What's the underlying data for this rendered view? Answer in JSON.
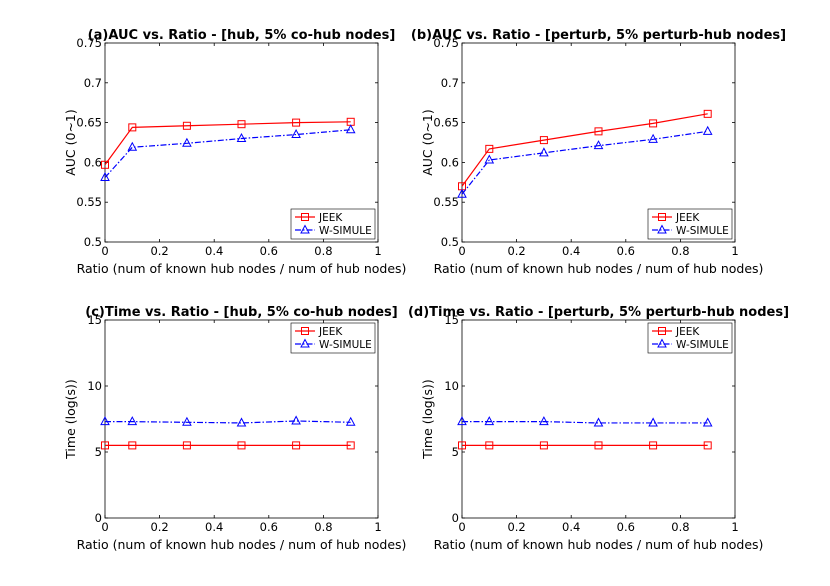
{
  "chart_data": [
    {
      "type": "line",
      "title": "(a)AUC vs. Ratio - [hub, 5% co-hub nodes]",
      "xlabel": "Ratio (num of known hub nodes / num of hub nodes)",
      "ylabel": "AUC (0~1)",
      "xlim": [
        0,
        1
      ],
      "ylim": [
        0.5,
        0.75
      ],
      "xticks": [
        "0",
        "0.2",
        "0.4",
        "0.6",
        "0.8",
        "1"
      ],
      "yticks": [
        "0.5",
        "0.55",
        "0.6",
        "0.65",
        "0.7",
        "0.75"
      ],
      "x": [
        0,
        0.1,
        0.3,
        0.5,
        0.7,
        0.9
      ],
      "legend_position": "bottom-right",
      "series": [
        {
          "name": "JEEK",
          "values": [
            0.597,
            0.644,
            0.646,
            0.648,
            0.65,
            0.651
          ],
          "color": "#ff0000",
          "marker": "square",
          "dash": "solid"
        },
        {
          "name": "W-SIMULE",
          "values": [
            0.581,
            0.619,
            0.624,
            0.63,
            0.635,
            0.641
          ],
          "color": "#0000ff",
          "marker": "triangle",
          "dash": "dashdot"
        }
      ]
    },
    {
      "type": "line",
      "title": "(b)AUC vs. Ratio - [perturb, 5% perturb-hub nodes]",
      "xlabel": "Ratio (num of known hub nodes / num of hub nodes)",
      "ylabel": "AUC (0~1)",
      "xlim": [
        0,
        1
      ],
      "ylim": [
        0.5,
        0.75
      ],
      "xticks": [
        "0",
        "0.2",
        "0.4",
        "0.6",
        "0.8",
        "1"
      ],
      "yticks": [
        "0.5",
        "0.55",
        "0.6",
        "0.65",
        "0.7",
        "0.75"
      ],
      "x": [
        0,
        0.1,
        0.3,
        0.5,
        0.7,
        0.9
      ],
      "legend_position": "bottom-right",
      "series": [
        {
          "name": "JEEK",
          "values": [
            0.57,
            0.617,
            0.628,
            0.639,
            0.649,
            0.661
          ],
          "color": "#ff0000",
          "marker": "square",
          "dash": "solid"
        },
        {
          "name": "W-SIMULE",
          "values": [
            0.56,
            0.603,
            0.612,
            0.621,
            0.629,
            0.639
          ],
          "color": "#0000ff",
          "marker": "triangle",
          "dash": "dashdot"
        }
      ]
    },
    {
      "type": "line",
      "title": "(c)Time vs. Ratio - [hub, 5% co-hub nodes]",
      "xlabel": "Ratio (num of known hub nodes / num of hub nodes)",
      "ylabel": "Time (log(s))",
      "xlim": [
        0,
        1
      ],
      "ylim": [
        0,
        15
      ],
      "xticks": [
        "0",
        "0.2",
        "0.4",
        "0.6",
        "0.8",
        "1"
      ],
      "yticks": [
        "0",
        "5",
        "10",
        "15"
      ],
      "x": [
        0,
        0.1,
        0.3,
        0.5,
        0.7,
        0.9
      ],
      "legend_position": "top-right",
      "series": [
        {
          "name": "JEEK",
          "values": [
            5.5,
            5.5,
            5.5,
            5.5,
            5.5,
            5.5
          ],
          "color": "#ff0000",
          "marker": "square",
          "dash": "solid"
        },
        {
          "name": "W-SIMULE",
          "values": [
            7.3,
            7.3,
            7.25,
            7.2,
            7.35,
            7.25
          ],
          "color": "#0000ff",
          "marker": "triangle",
          "dash": "dashdot"
        }
      ]
    },
    {
      "type": "line",
      "title": "(d)Time vs. Ratio - [perturb, 5% perturb-hub nodes]",
      "xlabel": "Ratio (num of known hub nodes / num of hub nodes)",
      "ylabel": "Time (log(s))",
      "xlim": [
        0,
        1
      ],
      "ylim": [
        0,
        15
      ],
      "xticks": [
        "0",
        "0.2",
        "0.4",
        "0.6",
        "0.8",
        "1"
      ],
      "yticks": [
        "0",
        "5",
        "10",
        "15"
      ],
      "x": [
        0,
        0.1,
        0.3,
        0.5,
        0.7,
        0.9
      ],
      "legend_position": "top-right",
      "series": [
        {
          "name": "JEEK",
          "values": [
            5.5,
            5.5,
            5.5,
            5.5,
            5.5,
            5.5
          ],
          "color": "#ff0000",
          "marker": "square",
          "dash": "solid"
        },
        {
          "name": "W-SIMULE",
          "values": [
            7.3,
            7.3,
            7.3,
            7.2,
            7.2,
            7.2
          ],
          "color": "#0000ff",
          "marker": "triangle",
          "dash": "dashdot"
        }
      ]
    }
  ]
}
